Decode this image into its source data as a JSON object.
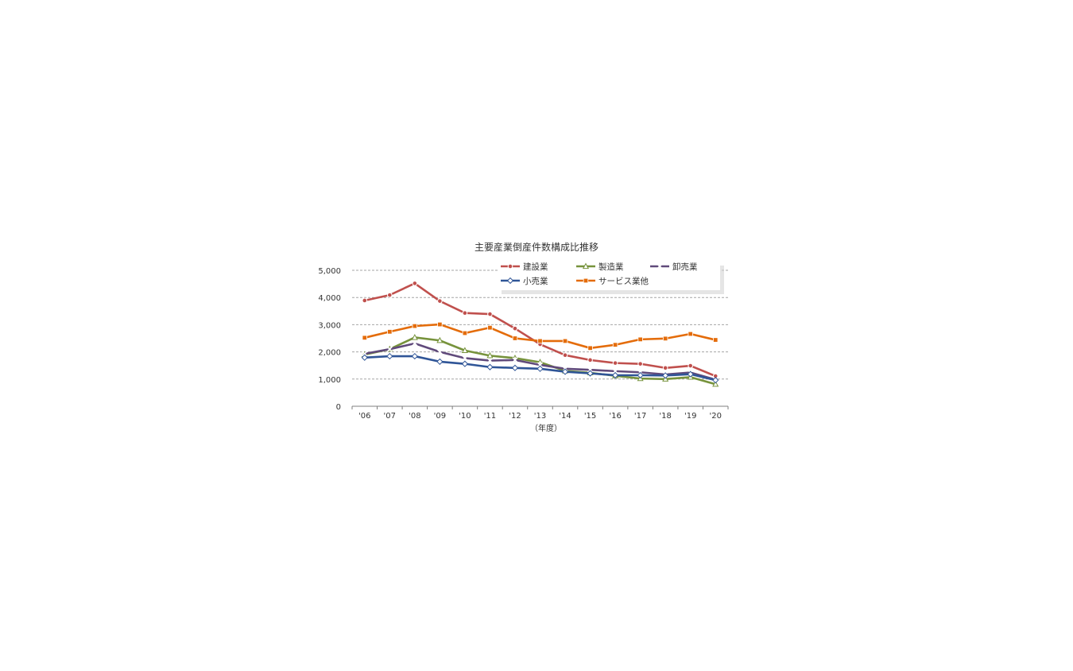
{
  "chart_data": {
    "type": "line",
    "title": "主要産業倒産件数構成比推移",
    "xlabel": "（年度）",
    "ylabel": "",
    "categories": [
      "'06",
      "'07",
      "'08",
      "'09",
      "'10",
      "'11",
      "'12",
      "'13",
      "'14",
      "'15",
      "'16",
      "'17",
      "'18",
      "'19",
      "'20"
    ],
    "ylim": [
      0,
      5000
    ],
    "yticks": [
      "0",
      "1,000",
      "2,000",
      "3,000",
      "4,000",
      "5,000"
    ],
    "grid": "horizontal-dashed",
    "legend_position": "top-right",
    "series": [
      {
        "name": "建設業",
        "color": "#c0504d",
        "marker": "circle",
        "values": [
          3890,
          4090,
          4520,
          3870,
          3430,
          3390,
          2860,
          2280,
          1880,
          1700,
          1590,
          1560,
          1410,
          1490,
          1110
        ]
      },
      {
        "name": "製造業",
        "color": "#77933c",
        "marker": "triangle",
        "values": [
          1900,
          2100,
          2530,
          2420,
          2050,
          1860,
          1770,
          1620,
          1300,
          1230,
          1120,
          1020,
          1000,
          1070,
          810
        ]
      },
      {
        "name": "卸売業",
        "color": "#604a7b",
        "marker": "x",
        "values": [
          1930,
          2100,
          2310,
          2000,
          1770,
          1680,
          1700,
          1520,
          1380,
          1340,
          1290,
          1250,
          1170,
          1240,
          980
        ]
      },
      {
        "name": "小売業",
        "color": "#2f5597",
        "marker": "diamond",
        "values": [
          1790,
          1840,
          1840,
          1640,
          1560,
          1440,
          1410,
          1380,
          1270,
          1210,
          1140,
          1140,
          1130,
          1180,
          960
        ]
      },
      {
        "name": "サービス業他",
        "color": "#e46c0a",
        "marker": "square",
        "values": [
          2520,
          2740,
          2950,
          3010,
          2690,
          2890,
          2500,
          2400,
          2400,
          2140,
          2260,
          2460,
          2490,
          2660,
          2440
        ]
      }
    ]
  }
}
